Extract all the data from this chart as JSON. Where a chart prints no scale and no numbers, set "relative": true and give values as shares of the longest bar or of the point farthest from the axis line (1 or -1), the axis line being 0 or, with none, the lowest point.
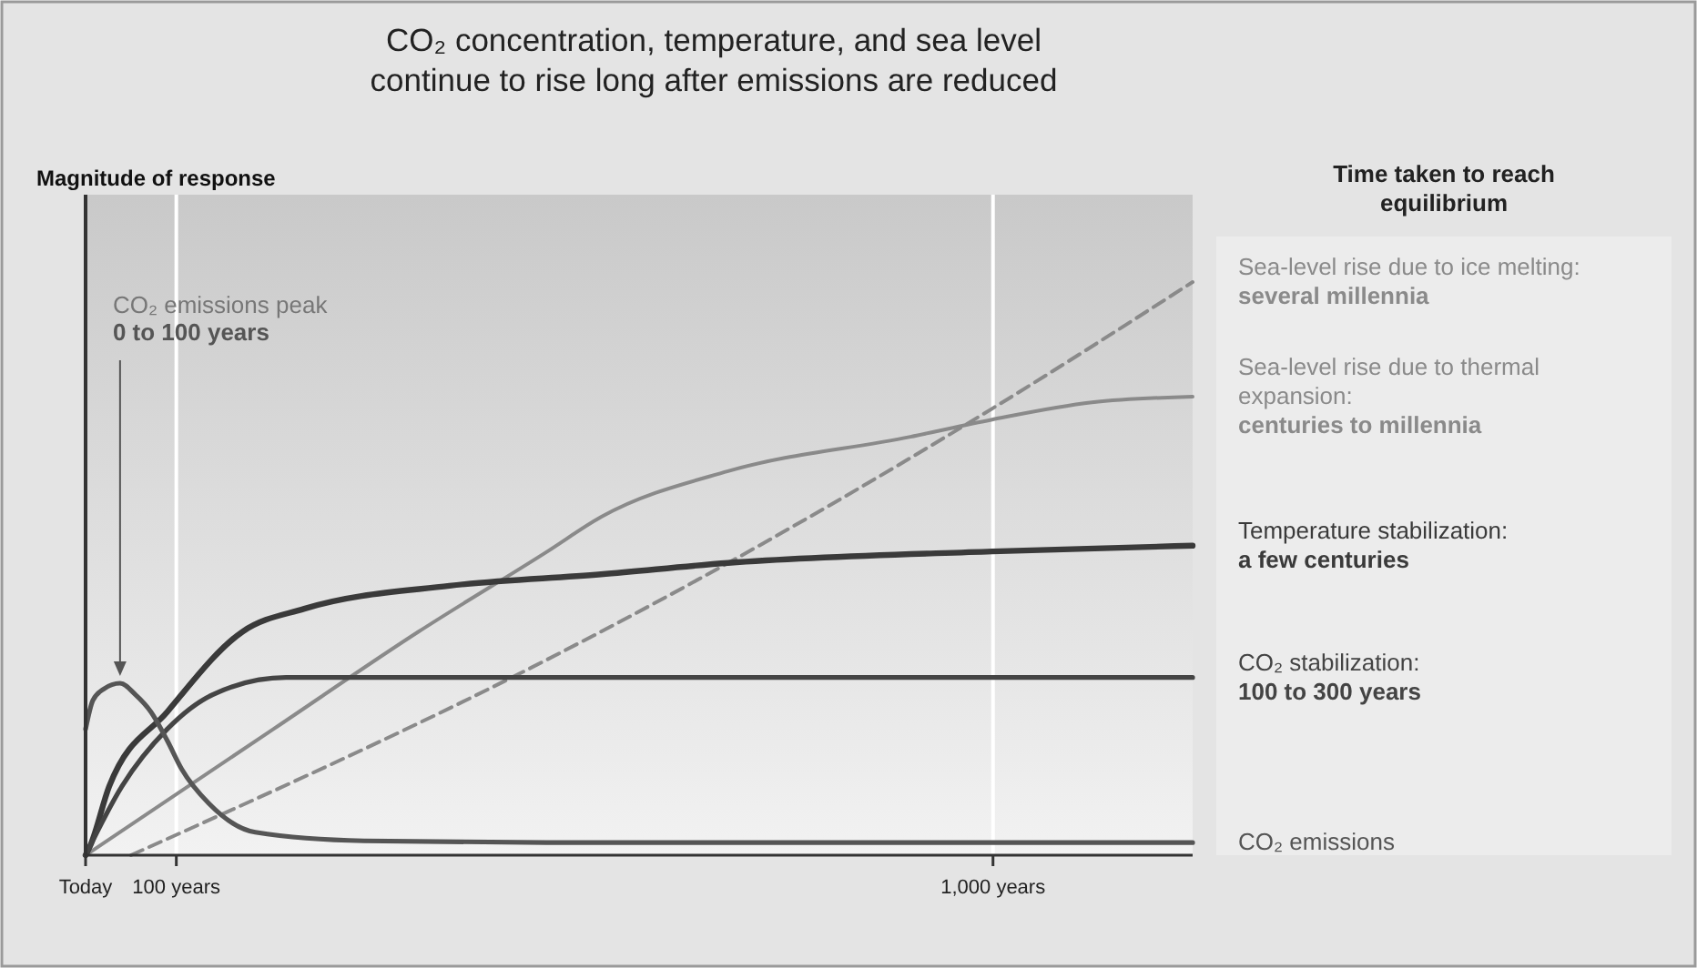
{
  "chart_data": {
    "type": "line",
    "title": "CO₂ concentration, temperature, and sea level\ncontinue to rise long after emissions are reduced",
    "ylabel": "Magnitude of response",
    "legend_title": "Time taken to reach\nequilibrium",
    "legend": "right",
    "relative": true,
    "grid": "x",
    "xlim": [
      0,
      1220
    ],
    "xticks": [
      {
        "value": 0,
        "label": "Today"
      },
      {
        "value": 100,
        "label": "100 years"
      },
      {
        "value": 1000,
        "label": "1,000 years"
      }
    ],
    "annotations": [
      {
        "text": "CO₂ emissions peak\n0 to 100 years",
        "x": 38,
        "y": 0.3
      }
    ],
    "series": [
      {
        "name": "Sea-level rise due to ice melting:\nseveral millennia",
        "color": "#8a8a8a",
        "line_style": "dashed",
        "x": [
          50,
          507,
          568,
          1000,
          1220
        ],
        "values": [
          0,
          0.34,
          0.39,
          0.78,
          1
        ]
      },
      {
        "name": "Sea-level rise due to thermal\nexpansion:\ncenturies to millennia",
        "color": "#8a8a8a",
        "x": [
          0,
          207,
          367,
          509,
          568,
          708,
          909,
          999,
          1109,
          1220
        ],
        "values": [
          0,
          0.22,
          0.39,
          0.53,
          0.59,
          0.67,
          0.73,
          0.76,
          0.79,
          0.8
        ]
      },
      {
        "name": "Temperature stabilization:\na few centuries",
        "color": "#3a3a3a",
        "x": [
          0,
          6,
          26,
          90,
          173,
          241,
          401,
          568,
          708,
          999,
          1220
        ],
        "values": [
          0,
          0.02,
          0.12,
          0.25,
          0.39,
          0.43,
          0.47,
          0.49,
          0.51,
          0.53,
          0.54
        ]
      },
      {
        "name": "CO₂ stabilization:\n100 to 300 years",
        "color": "#444444",
        "x": [
          0,
          40,
          90,
          140,
          221,
          568,
          1220
        ],
        "values": [
          0,
          0.12,
          0.22,
          0.28,
          0.31,
          0.31,
          0.31
        ]
      },
      {
        "name": "CO₂ emissions",
        "color": "#555555",
        "x": [
          0,
          8,
          20,
          38,
          55,
          72,
          90,
          106,
          136,
          187,
          307,
          508,
          800,
          1220
        ],
        "values": [
          0.22,
          0.27,
          0.29,
          0.3,
          0.28,
          0.25,
          0.2,
          0.15,
          0.09,
          0.04,
          0.025,
          0.022,
          0.022,
          0.022
        ]
      }
    ]
  }
}
